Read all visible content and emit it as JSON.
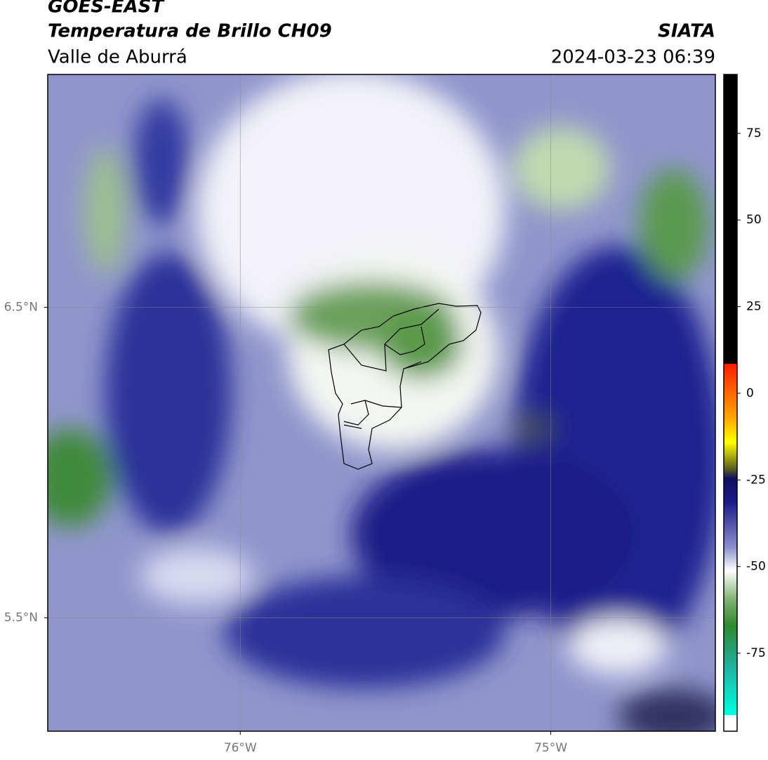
{
  "header": {
    "title": "GOES-EAST",
    "subtitle": "Temperatura de Brillo CH09",
    "region": "Valle de Aburrá",
    "source": "SIATA",
    "datetime": "2024-03-23 06:39"
  },
  "map": {
    "xlim": [
      -76.62,
      -74.47
    ],
    "ylim": [
      5.135,
      7.25
    ],
    "xticks": [
      {
        "value": -76,
        "label": "76°W"
      },
      {
        "value": -75,
        "label": "75°W"
      }
    ],
    "yticks": [
      {
        "value": 6.5,
        "label": "6.5°N"
      },
      {
        "value": 5.5,
        "label": "5.5°N"
      }
    ]
  },
  "colorbar": {
    "ylim": [
      -97.5,
      92
    ],
    "yticks": [
      75,
      50,
      25,
      0,
      -25,
      -50,
      -75
    ]
  }
}
